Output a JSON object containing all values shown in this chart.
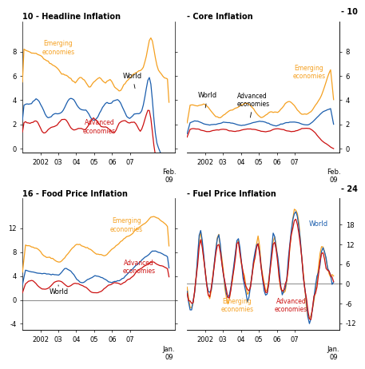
{
  "colors": {
    "emerging": "#F5A623",
    "world": "#1A5DAD",
    "advanced": "#CC1111"
  },
  "headline": {
    "title": "10 - Headline Inflation",
    "ylim": [
      -0.3,
      10.5
    ],
    "yticks": [
      0,
      2,
      4,
      6,
      8
    ],
    "side": "left",
    "hline": null,
    "xend": "Feb.\n09"
  },
  "core": {
    "title": "- Core Inflation",
    "title_right": "- 10",
    "ylim": [
      -0.3,
      10.5
    ],
    "yticks": [
      0,
      2,
      4,
      6,
      8
    ],
    "side": "right",
    "hline": null,
    "xend": "Feb.\n09"
  },
  "food": {
    "title": "16 - Food Price Inflation",
    "ylim": [
      -5.0,
      17.0
    ],
    "yticks": [
      -4,
      0,
      4,
      8,
      12
    ],
    "side": "left",
    "hline": 0,
    "xend": "Jan.\n09"
  },
  "fuel": {
    "title": "- Fuel Price Inflation",
    "title_right": "- 24",
    "ylim": [
      -14,
      26
    ],
    "yticks": [
      -12,
      -6,
      0,
      6,
      12,
      18
    ],
    "side": "right",
    "hline": 0,
    "xend": "Jan.\n09"
  }
}
